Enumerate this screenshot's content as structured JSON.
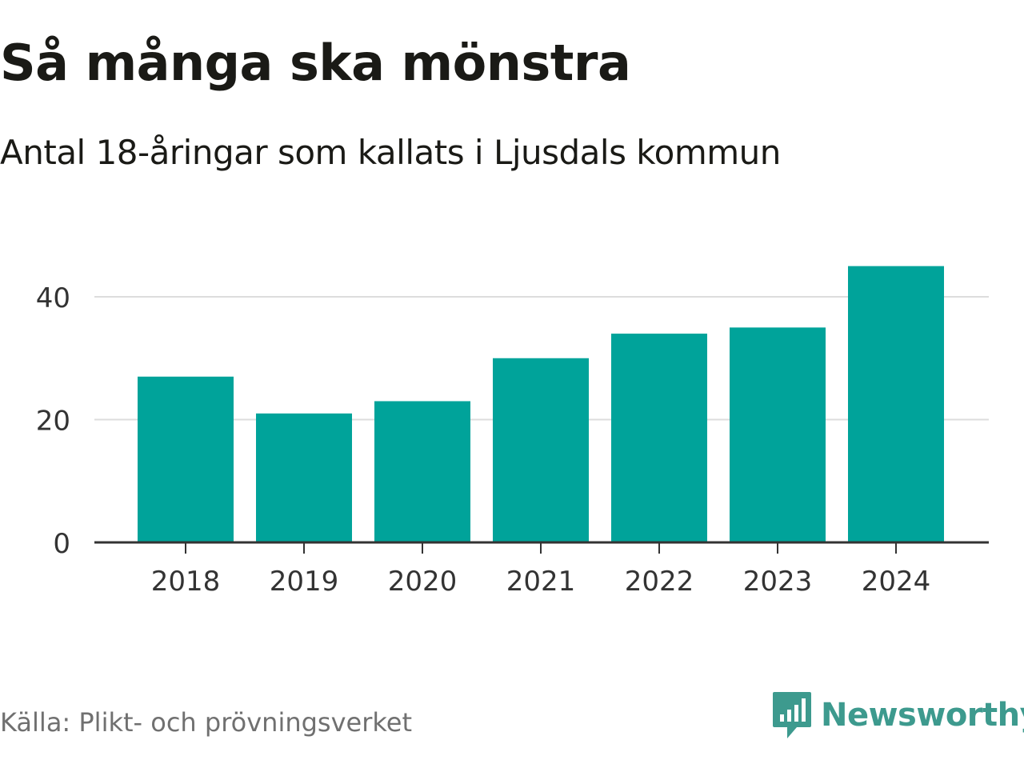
{
  "chart_data": {
    "type": "bar",
    "title": "Så många ska mönstra",
    "subtitle": "Antal 18-åringar som kallats i Ljusdals kommun",
    "categories": [
      "2018",
      "2019",
      "2020",
      "2021",
      "2022",
      "2023",
      "2024"
    ],
    "values": [
      27,
      21,
      23,
      30,
      34,
      35,
      45
    ],
    "xlabel": "",
    "ylabel": "",
    "ylim": [
      0,
      45
    ],
    "yticks": [
      "0",
      "20",
      "40"
    ],
    "grid": true,
    "bar_color": "#00a39a",
    "source": "Källa: Plikt- och prövningsverket"
  },
  "brand": {
    "name": "Newsworthy",
    "color": "#3d9a8e"
  }
}
